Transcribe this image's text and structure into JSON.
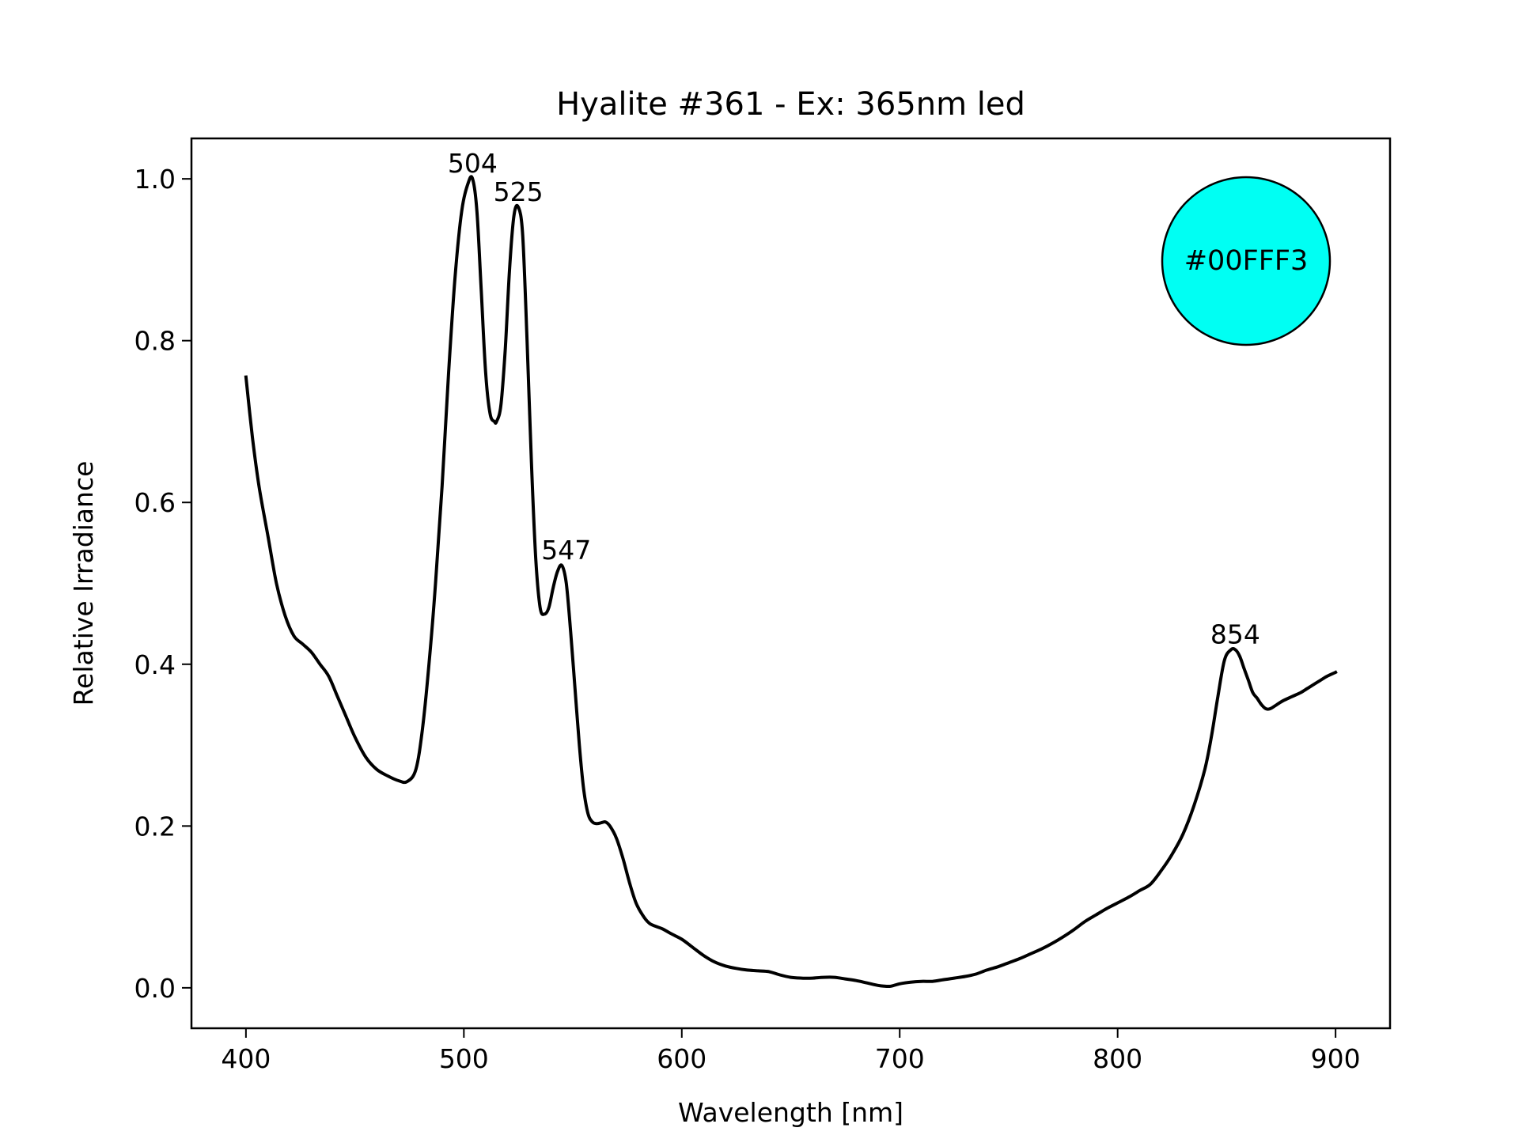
{
  "chart_data": {
    "type": "line",
    "title": "Hyalite #361 - Ex: 365nm led",
    "xlabel": "Wavelength [nm]",
    "ylabel": "Relative Irradiance",
    "xlim": [
      375,
      925
    ],
    "ylim": [
      -0.05,
      1.05
    ],
    "xticks": [
      400,
      500,
      600,
      700,
      800,
      900
    ],
    "yticks": [
      0.0,
      0.2,
      0.4,
      0.6,
      0.8,
      1.0
    ],
    "xtick_labels": [
      "400",
      "500",
      "600",
      "700",
      "800",
      "900"
    ],
    "ytick_labels": [
      "0.0",
      "0.2",
      "0.4",
      "0.6",
      "0.8",
      "1.0"
    ],
    "grid": false,
    "legend": "none",
    "line_color": "#000000",
    "series": [
      {
        "x": [
          400,
          403,
          406,
          410,
          414,
          418,
          422,
          426,
          430,
          434,
          438,
          442,
          446,
          450,
          455,
          460,
          465,
          470,
          474,
          478,
          481,
          484,
          487,
          490,
          493,
          496,
          499,
          502,
          504,
          506,
          508,
          510,
          512,
          514,
          515,
          517,
          519,
          521,
          523,
          525,
          527,
          529,
          531,
          533,
          535,
          537,
          539,
          541,
          543,
          545,
          547,
          549,
          551,
          553,
          555,
          557,
          559,
          561,
          563,
          565,
          567,
          570,
          573,
          576,
          579,
          582,
          585,
          588,
          591,
          595,
          600,
          605,
          610,
          615,
          620,
          625,
          630,
          635,
          640,
          645,
          650,
          655,
          660,
          665,
          670,
          675,
          680,
          685,
          690,
          693,
          696,
          700,
          705,
          710,
          715,
          720,
          725,
          730,
          735,
          740,
          745,
          750,
          755,
          760,
          765,
          770,
          775,
          780,
          785,
          790,
          795,
          800,
          805,
          810,
          815,
          820,
          825,
          830,
          835,
          840,
          843,
          846,
          849,
          852,
          854,
          856,
          858,
          860,
          862,
          864,
          866,
          868,
          870,
          873,
          876,
          880,
          884,
          887,
          890,
          893,
          896,
          900
        ],
        "y": [
          0.755,
          0.68,
          0.62,
          0.56,
          0.5,
          0.46,
          0.435,
          0.425,
          0.415,
          0.4,
          0.385,
          0.36,
          0.335,
          0.31,
          0.285,
          0.27,
          0.262,
          0.256,
          0.255,
          0.27,
          0.32,
          0.4,
          0.5,
          0.62,
          0.76,
          0.88,
          0.96,
          0.995,
          1.0,
          0.96,
          0.86,
          0.76,
          0.71,
          0.7,
          0.7,
          0.72,
          0.79,
          0.89,
          0.955,
          0.965,
          0.93,
          0.8,
          0.65,
          0.53,
          0.47,
          0.462,
          0.47,
          0.495,
          0.515,
          0.522,
          0.5,
          0.44,
          0.37,
          0.3,
          0.245,
          0.215,
          0.205,
          0.203,
          0.204,
          0.205,
          0.2,
          0.185,
          0.16,
          0.13,
          0.105,
          0.09,
          0.08,
          0.076,
          0.073,
          0.067,
          0.06,
          0.05,
          0.04,
          0.032,
          0.027,
          0.024,
          0.022,
          0.021,
          0.02,
          0.016,
          0.013,
          0.012,
          0.012,
          0.013,
          0.013,
          0.011,
          0.009,
          0.006,
          0.003,
          0.002,
          0.002,
          0.005,
          0.007,
          0.008,
          0.008,
          0.01,
          0.012,
          0.014,
          0.017,
          0.022,
          0.026,
          0.031,
          0.036,
          0.042,
          0.048,
          0.055,
          0.063,
          0.072,
          0.082,
          0.09,
          0.098,
          0.105,
          0.112,
          0.12,
          0.128,
          0.145,
          0.165,
          0.19,
          0.225,
          0.27,
          0.31,
          0.36,
          0.405,
          0.418,
          0.418,
          0.41,
          0.395,
          0.38,
          0.365,
          0.358,
          0.35,
          0.345,
          0.345,
          0.35,
          0.355,
          0.36,
          0.365,
          0.37,
          0.375,
          0.38,
          0.385,
          0.39
        ]
      }
    ],
    "annotations": [
      {
        "text": "504",
        "x": 504,
        "y": 1.0
      },
      {
        "text": "525",
        "x": 525,
        "y": 0.965
      },
      {
        "text": "547",
        "x": 547,
        "y": 0.522
      },
      {
        "text": "854",
        "x": 854,
        "y": 0.418
      }
    ],
    "color_badge": {
      "text": "#00FFF3",
      "fill": "#00FFF3",
      "placement": "top-right"
    }
  }
}
